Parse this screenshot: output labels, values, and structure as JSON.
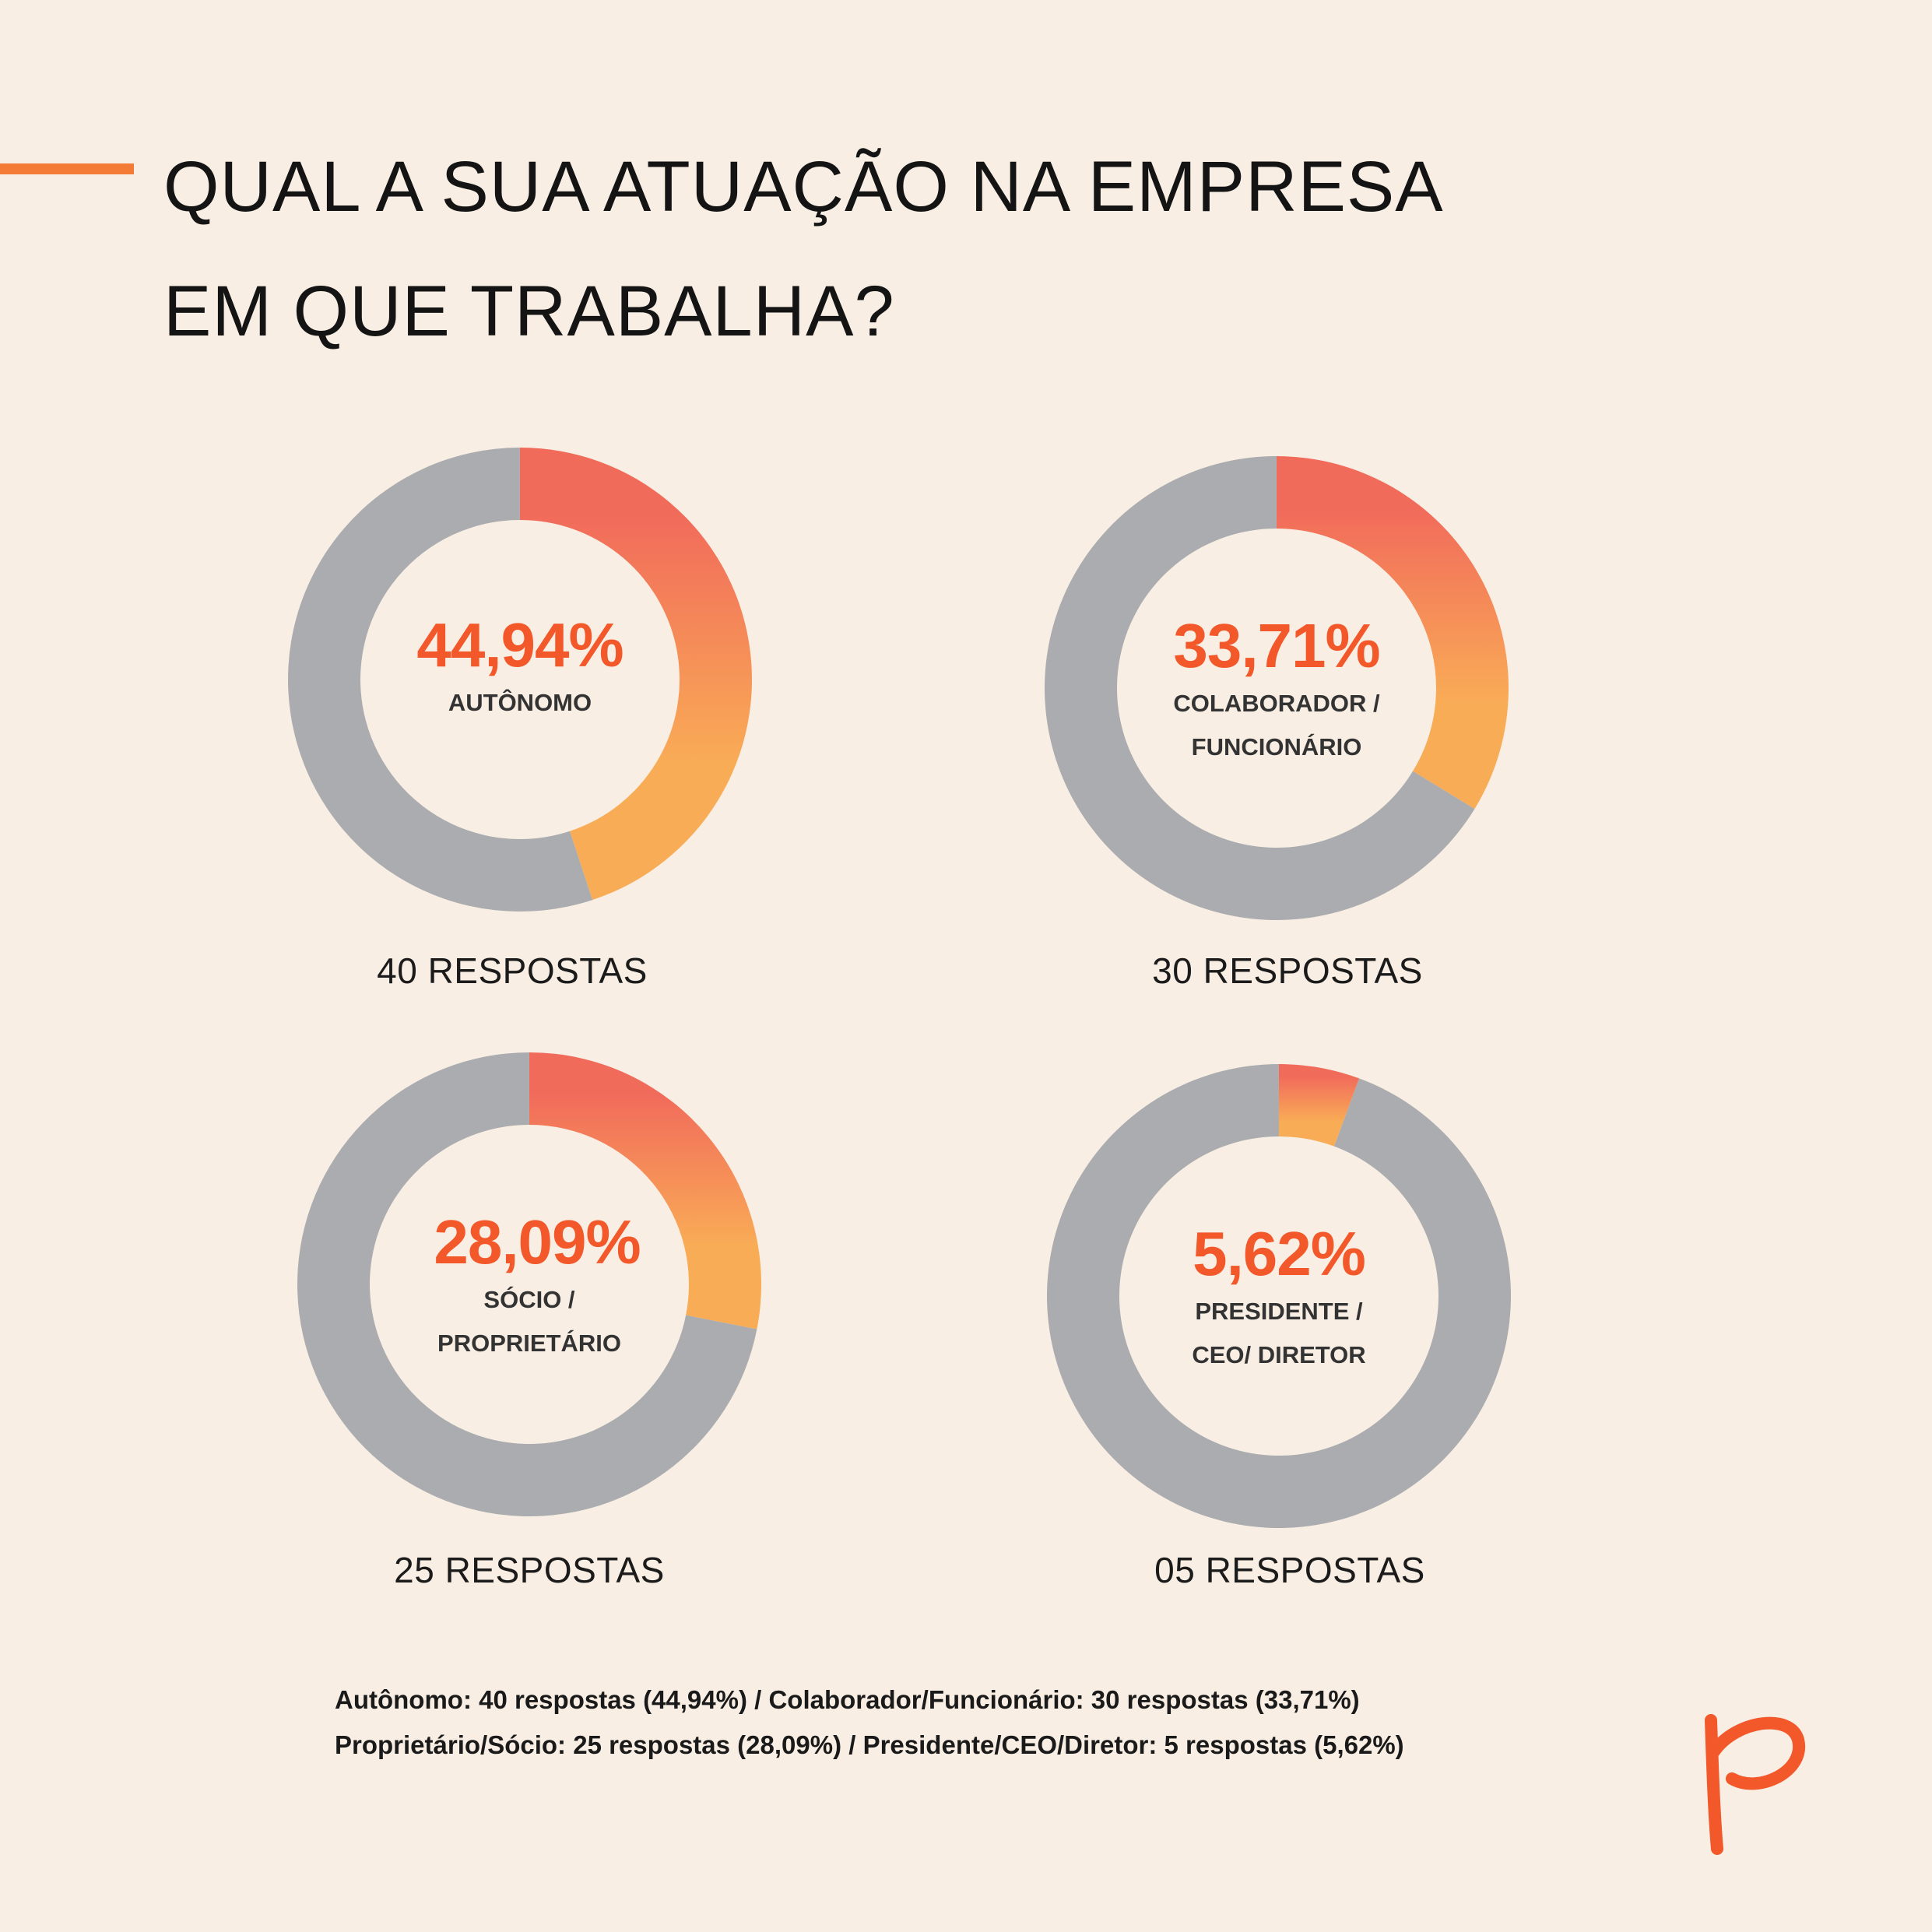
{
  "title": {
    "line1": "QUAL A SUA ATUAÇÃO NA EMPRESA",
    "line2": "EM QUE TRABALHA?"
  },
  "colors": {
    "background": "#F8EEE3",
    "accent": "#F47B36",
    "percent_text": "#F2582A",
    "ring_gray": "#ABACAF",
    "gradient_start": "#F16B5B",
    "gradient_end": "#F9AC56"
  },
  "chart_data": [
    {
      "type": "pie",
      "variant": "donut",
      "value": 44.94,
      "percent_label": "44,94%",
      "label_line1": "AUTÔNOMO",
      "label_line2": "",
      "responses_label": "40 RESPOSTAS"
    },
    {
      "type": "pie",
      "variant": "donut",
      "value": 33.71,
      "percent_label": "33,71%",
      "label_line1": "COLABORADOR /",
      "label_line2": "FUNCIONÁRIO",
      "responses_label": "30 RESPOSTAS"
    },
    {
      "type": "pie",
      "variant": "donut",
      "value": 28.09,
      "percent_label": "28,09%",
      "label_line1": "SÓCIO /",
      "label_line2": "PROPRIETÁRIO",
      "responses_label": "25 RESPOSTAS"
    },
    {
      "type": "pie",
      "variant": "donut",
      "value": 5.62,
      "percent_label": "5,62%",
      "label_line1": "PRESIDENTE /",
      "label_line2": "CEO/ DIRETOR",
      "responses_label": "05 RESPOSTAS"
    }
  ],
  "footnote": {
    "line1": "Autônomo: 40 respostas (44,94%)  /  Colaborador/Funcionário: 30 respostas (33,71%)",
    "line2": "Proprietário/Sócio: 25 respostas (28,09%)  /  Presidente/CEO/Diretor: 5 respostas (5,62%)"
  },
  "logo": {
    "icon": "brand-p-logo"
  }
}
